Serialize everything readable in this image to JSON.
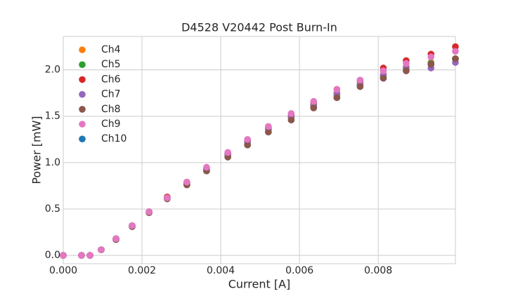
{
  "chart_data": {
    "type": "scatter",
    "title": "D4528 V20442 Post Burn-In",
    "xlabel": "Current [A]",
    "ylabel": "Power [mW]",
    "x": [
      0,
      0.000464,
      0.000679,
      0.000964,
      0.00134,
      0.00175,
      0.00218,
      0.00264,
      0.00314,
      0.00364,
      0.00418,
      0.00468,
      0.00521,
      0.00579,
      0.00636,
      0.00695,
      0.00754,
      0.00813,
      0.00871,
      0.00934,
      0.00996
    ],
    "series": [
      {
        "name": "Ch4",
        "color": "#ff7f0e",
        "values": [
          0,
          0,
          0,
          0.06,
          0.18,
          0.32,
          0.47,
          0.62,
          0.78,
          0.93,
          1.09,
          1.22,
          1.36,
          1.49,
          1.62,
          1.75,
          1.85,
          1.94,
          2.03,
          2.08,
          2.12
        ]
      },
      {
        "name": "Ch5",
        "color": "#2ca02c",
        "values": [
          0,
          0,
          0,
          0.06,
          0.18,
          0.32,
          0.47,
          0.62,
          0.78,
          0.93,
          1.09,
          1.22,
          1.36,
          1.49,
          1.62,
          1.73,
          1.84,
          1.93,
          2.02,
          2.07,
          2.12
        ]
      },
      {
        "name": "Ch6",
        "color": "#d62728",
        "values": [
          0,
          0,
          0,
          0.06,
          0.18,
          0.32,
          0.47,
          0.63,
          0.79,
          0.94,
          1.1,
          1.24,
          1.38,
          1.51,
          1.65,
          1.79,
          1.88,
          2.02,
          2.1,
          2.17,
          2.25
        ]
      },
      {
        "name": "Ch7",
        "color": "#9467bd",
        "values": [
          0,
          0,
          0,
          0.06,
          0.18,
          0.32,
          0.47,
          0.62,
          0.78,
          0.93,
          1.09,
          1.22,
          1.36,
          1.49,
          1.61,
          1.74,
          1.84,
          1.95,
          2.02,
          2.02,
          2.08
        ]
      },
      {
        "name": "Ch8",
        "color": "#8c564b",
        "values": [
          0,
          0,
          0,
          0.06,
          0.17,
          0.31,
          0.46,
          0.61,
          0.76,
          0.91,
          1.06,
          1.19,
          1.33,
          1.46,
          1.59,
          1.7,
          1.82,
          1.91,
          1.99,
          2.06,
          2.12
        ]
      },
      {
        "name": "Ch9",
        "color": "#e377c2",
        "values": [
          0,
          0,
          0,
          0.06,
          0.18,
          0.32,
          0.47,
          0.62,
          0.79,
          0.95,
          1.11,
          1.25,
          1.39,
          1.53,
          1.66,
          1.79,
          1.89,
          1.99,
          2.07,
          2.14,
          2.2
        ]
      },
      {
        "name": "Ch10",
        "color": "#1f77b4",
        "values": [
          0,
          0,
          0,
          0.06,
          0.17,
          0.31,
          0.46,
          0.61,
          0.76,
          0.91,
          1.06,
          1.19,
          1.33,
          1.46,
          1.59,
          1.7,
          1.82,
          1.91,
          1.99,
          2.06,
          2.12
        ]
      }
    ],
    "xlim": [
      0,
      0.00996
    ],
    "ylim": [
      -0.09,
      2.36
    ],
    "xticks": [
      {
        "value": 0,
        "label": "0.000"
      },
      {
        "value": 0.002,
        "label": "0.002"
      },
      {
        "value": 0.004,
        "label": "0.004"
      },
      {
        "value": 0.006,
        "label": "0.006"
      },
      {
        "value": 0.008,
        "label": "0.008"
      }
    ],
    "yticks": [
      {
        "value": 0,
        "label": "0.0"
      },
      {
        "value": 0.5,
        "label": "0.5"
      },
      {
        "value": 1,
        "label": "1.0"
      },
      {
        "value": 1.5,
        "label": "1.5"
      },
      {
        "value": 2,
        "label": "2.0"
      }
    ],
    "grid": true,
    "legend": "upper left"
  }
}
